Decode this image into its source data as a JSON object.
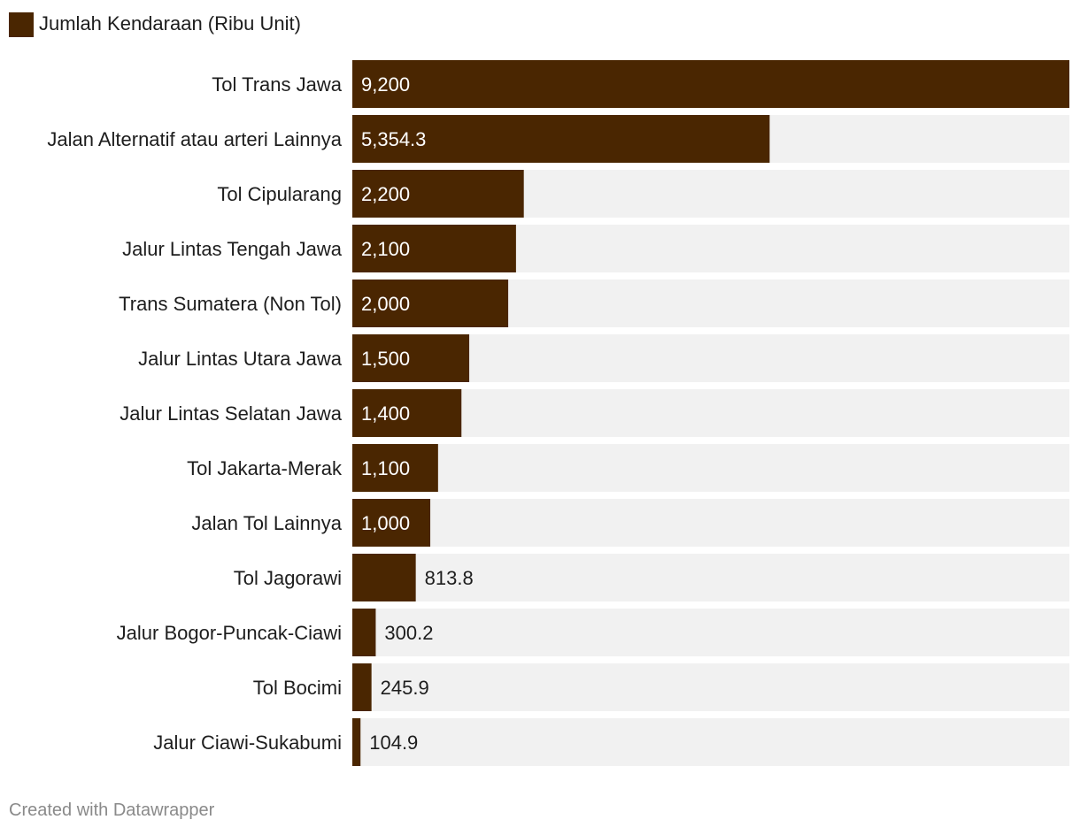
{
  "colors": {
    "bar": "#4a2601",
    "track": "#f1f1f1",
    "label_inside": "#ffffff",
    "label_outside": "#1d1d1d"
  },
  "footer": {
    "credit": "Created with Datawrapper"
  },
  "chart_data": {
    "type": "bar",
    "orientation": "horizontal",
    "legend": "top-left",
    "grid": false,
    "xlim": [
      0,
      9200
    ],
    "series": [
      {
        "name": "Jumlah Kendaraan (Ribu Unit)"
      }
    ],
    "categories": [
      "Tol Trans Jawa",
      "Jalan Alternatif atau arteri Lainnya",
      "Tol Cipularang",
      "Jalur Lintas Tengah Jawa",
      "Trans Sumatera (Non Tol)",
      "Jalur Lintas Utara Jawa",
      "Jalur Lintas Selatan Jawa",
      "Tol Jakarta-Merak",
      "Jalan Tol Lainnya",
      "Tol Jagorawi",
      "Jalur Bogor-Puncak-Ciawi",
      "Tol Bocimi",
      "Jalur Ciawi-Sukabumi"
    ],
    "values": [
      9200,
      5354.3,
      2200,
      2100,
      2000,
      1500,
      1400,
      1100,
      1000,
      813.8,
      300.2,
      245.9,
      104.9
    ],
    "value_labels": [
      "9,200",
      "5,354.3",
      "2,200",
      "2,100",
      "2,000",
      "1,500",
      "1,400",
      "1,100",
      "1,000",
      "813.8",
      "300.2",
      "245.9",
      "104.9"
    ]
  }
}
